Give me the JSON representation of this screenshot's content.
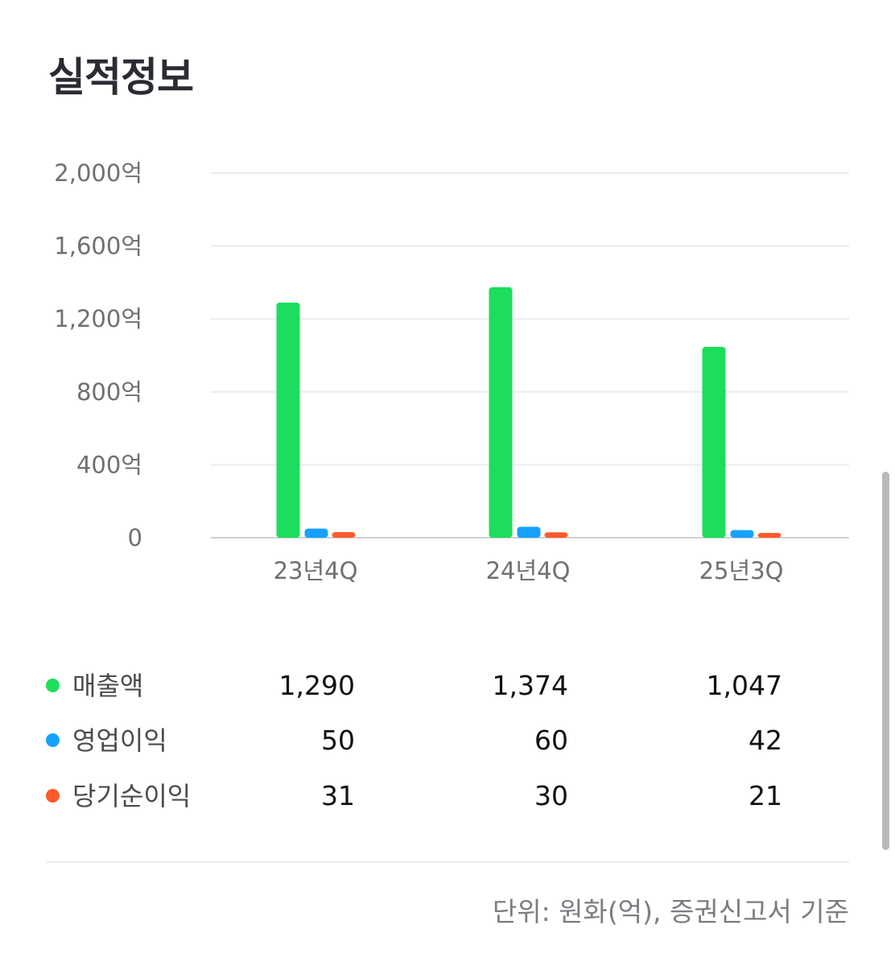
{
  "header": {
    "title": "실적정보"
  },
  "chart_data": {
    "type": "bar",
    "categories": [
      "23년4Q",
      "24년4Q",
      "25년3Q"
    ],
    "y_ticks": [
      "0",
      "400억",
      "800억",
      "1,200억",
      "1,600억",
      "2,000억"
    ],
    "y_tick_values": [
      0,
      400,
      800,
      1200,
      1600,
      2000
    ],
    "ylim": [
      0,
      2000
    ],
    "grid": true,
    "series": [
      {
        "name": "매출액",
        "color": "#1ddd5c",
        "values": [
          1290,
          1374,
          1047
        ],
        "labels": [
          "1,290",
          "1,374",
          "1,047"
        ]
      },
      {
        "name": "영업이익",
        "color": "#16a1ff",
        "values": [
          50,
          60,
          42
        ],
        "labels": [
          "50",
          "60",
          "42"
        ]
      },
      {
        "name": "당기순이익",
        "color": "#ff5a2a",
        "values": [
          31,
          30,
          21
        ],
        "labels": [
          "31",
          "30",
          "21"
        ]
      }
    ]
  },
  "footer": {
    "note": "단위: 원화(억), 증권신고서 기준"
  }
}
